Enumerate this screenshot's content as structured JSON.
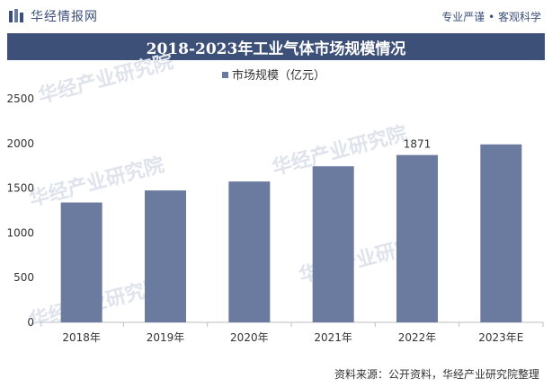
{
  "header": {
    "brand": "华经情报网",
    "tagline": "专业严谨 • 客观科学"
  },
  "title": "2018-2023年工业气体市场规模情况",
  "watermark": "华经产业研究院",
  "source": "资料来源：公开资料，华经产业研究院整理",
  "colors": {
    "bar": "#6b7a9f",
    "title_bg": "#3d5078",
    "brand": "#3c4f7a"
  },
  "chart_data": {
    "type": "bar",
    "categories": [
      "2018年",
      "2019年",
      "2020年",
      "2021年",
      "2022年",
      "2023年E"
    ],
    "series": [
      {
        "name": "市场规模（亿元）",
        "values": [
          1340,
          1475,
          1575,
          1745,
          1871,
          1990
        ]
      }
    ],
    "data_labels": [
      null,
      null,
      null,
      null,
      "1871",
      null
    ],
    "ylim": [
      0,
      2500
    ],
    "yticks": [
      0,
      500,
      1000,
      1500,
      2000,
      2500
    ],
    "grid": false,
    "legend": "top-center"
  }
}
